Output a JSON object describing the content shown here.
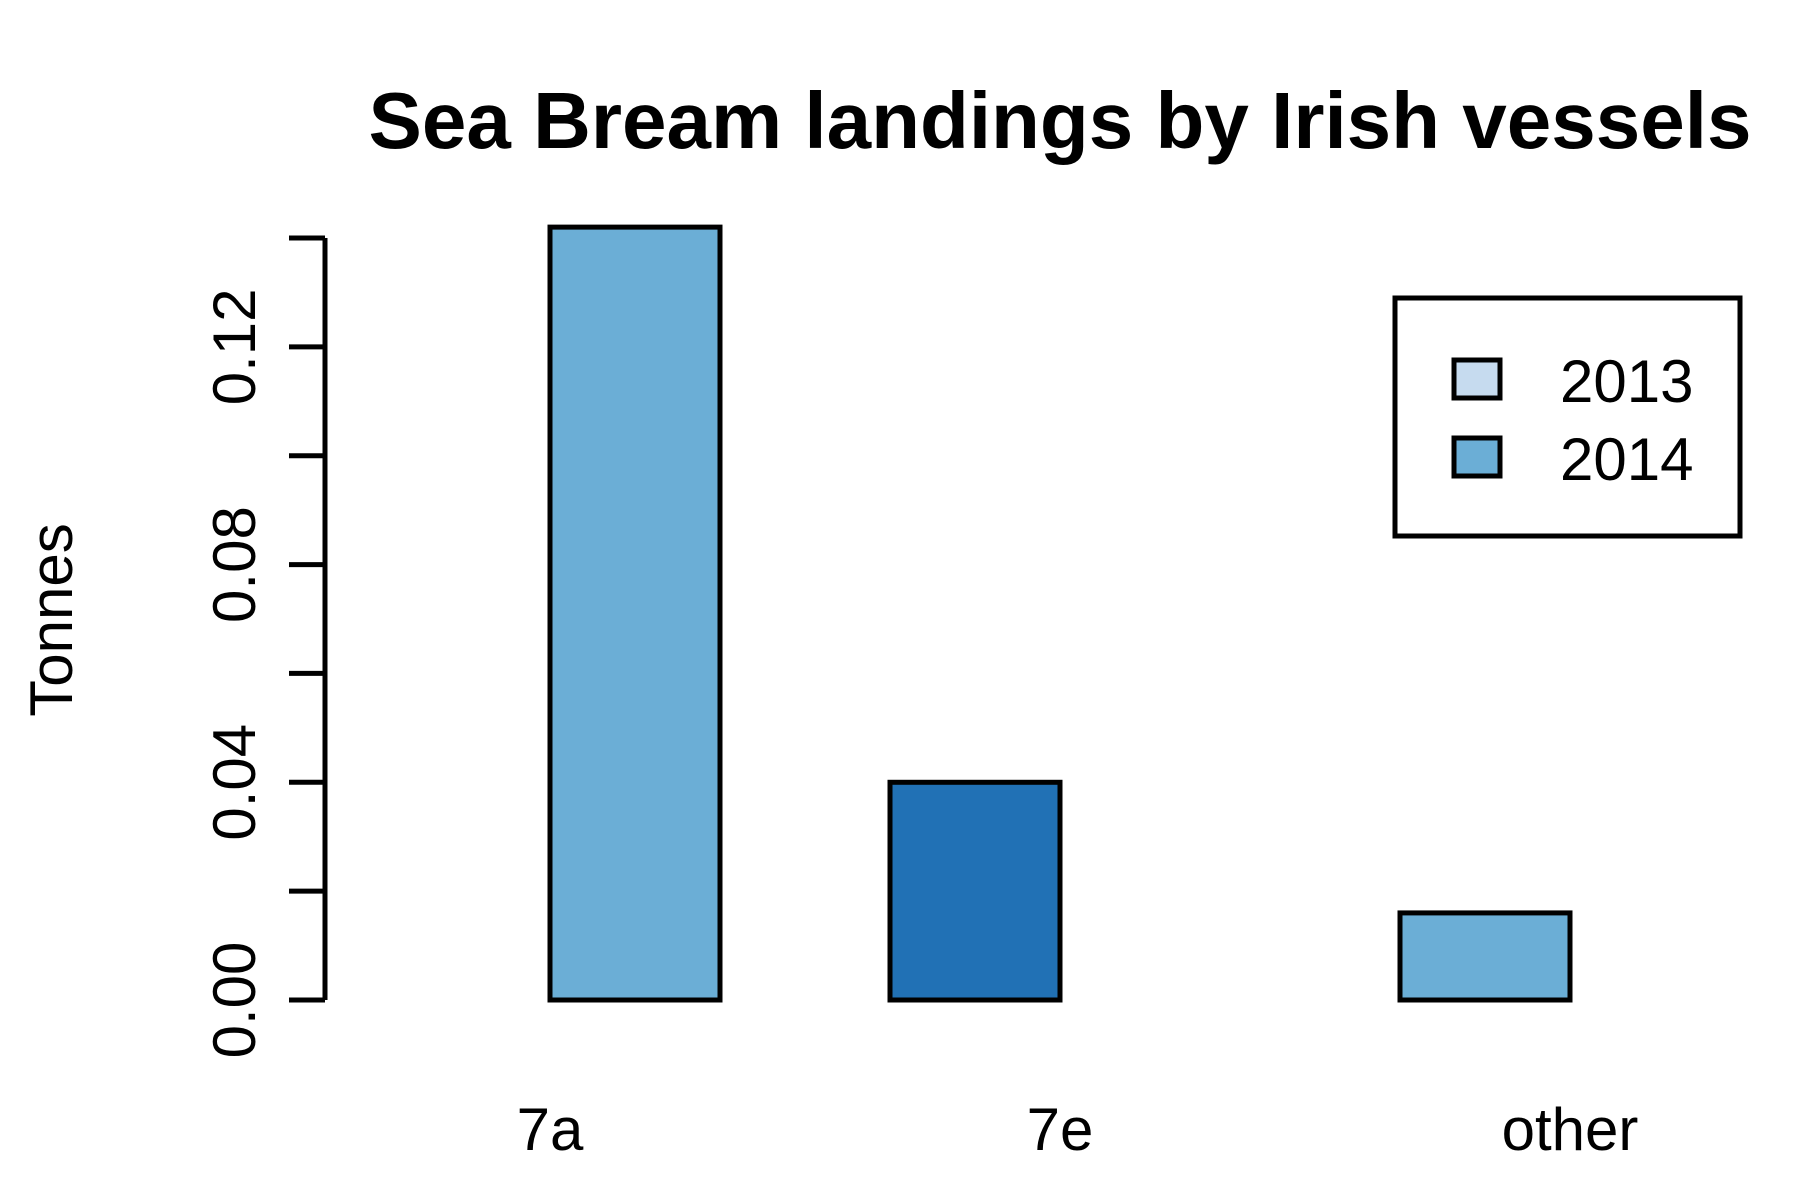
{
  "chart_data": {
    "type": "bar",
    "title": "Sea Bream landings by Irish vessels",
    "xlabel": "",
    "ylabel": "Tonnes",
    "categories": [
      "7a",
      "7e",
      "other"
    ],
    "series": [
      {
        "name": "2013",
        "color": "#c6dbef",
        "values": [
          0.0,
          0.04,
          0.016
        ]
      },
      {
        "name": "2014",
        "color": "#6baed6",
        "values": [
          0.142,
          0.0,
          0.0
        ]
      }
    ],
    "bar_colors": [
      [
        "#c6dbef",
        "#6baed6"
      ],
      [
        "#2171b5",
        "#6baed6"
      ],
      [
        "#6baed6",
        "#6baed6"
      ]
    ],
    "yticks": [
      "0.00",
      "0.04",
      "0.08",
      "0.12"
    ],
    "ytick_values": [
      0,
      0.04,
      0.08,
      0.12
    ],
    "yminor_values": [
      0.02,
      0.06,
      0.1,
      0.14
    ],
    "ylim": [
      0,
      0.14
    ],
    "grid": false,
    "legend": {
      "placement": "top-right",
      "items": [
        {
          "label": "2013",
          "color": "#c6dbef"
        },
        {
          "label": "2014",
          "color": "#6baed6"
        }
      ]
    }
  }
}
